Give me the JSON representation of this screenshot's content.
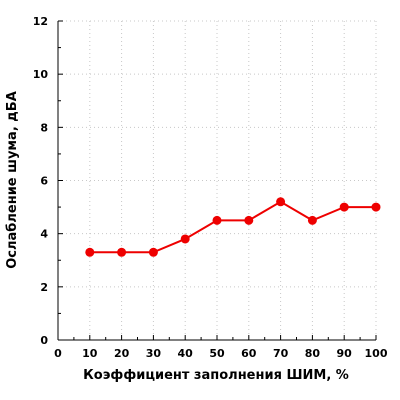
{
  "chart_data": {
    "type": "line",
    "xlabel": "Коэффициент заполнения ШИМ, %",
    "ylabel": "Ослабление шума, дБА",
    "xlim": [
      0,
      100
    ],
    "ylim": [
      0,
      12
    ],
    "xticks": [
      "0",
      "10",
      "20",
      "30",
      "40",
      "50",
      "60",
      "70",
      "80",
      "90",
      "100"
    ],
    "yticks": [
      "0",
      "2",
      "4",
      "6",
      "8",
      "10",
      "12"
    ],
    "grid": true,
    "series": [
      {
        "color": "#ee0000",
        "x": [
          10,
          20,
          30,
          40,
          50,
          60,
          70,
          80,
          90,
          100
        ],
        "y": [
          3.3,
          3.3,
          3.3,
          3.8,
          4.5,
          4.5,
          5.2,
          4.5,
          5.0,
          5.0
        ]
      }
    ]
  }
}
